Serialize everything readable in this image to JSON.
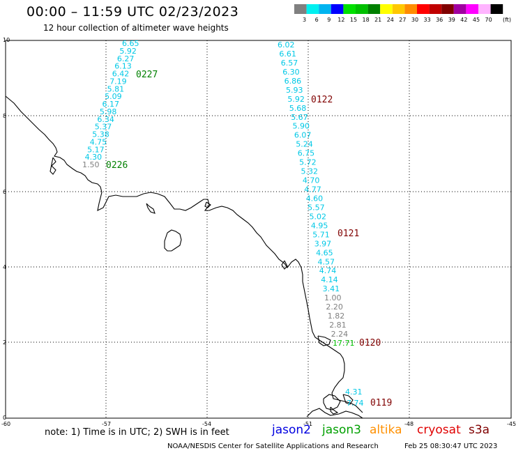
{
  "header": {
    "title": "00:00 – 11:59 UTC 02/23/2023",
    "subtitle": "12 hour collection of altimeter wave heights"
  },
  "legend": {
    "unit": "(ft)",
    "bins": [
      {
        "label": "3",
        "color": "#808080"
      },
      {
        "label": "6",
        "color": "#00f0f0"
      },
      {
        "label": "9",
        "color": "#00b4f0"
      },
      {
        "label": "12",
        "color": "#0000ff"
      },
      {
        "label": "15",
        "color": "#00e000"
      },
      {
        "label": "18",
        "color": "#00c000"
      },
      {
        "label": "21",
        "color": "#008000"
      },
      {
        "label": "24",
        "color": "#ffff00"
      },
      {
        "label": "27",
        "color": "#ffc800"
      },
      {
        "label": "30",
        "color": "#ff8c00"
      },
      {
        "label": "33",
        "color": "#ff0000"
      },
      {
        "label": "36",
        "color": "#c00000"
      },
      {
        "label": "39",
        "color": "#800000"
      },
      {
        "label": "42",
        "color": "#a000a0"
      },
      {
        "label": "45",
        "color": "#ff00ff"
      },
      {
        "label": "70",
        "color": "#ffb4ff"
      },
      {
        "label": "",
        "color": "#000000"
      }
    ]
  },
  "axes": {
    "lon_ticks": [
      "-60",
      "-57",
      "-54",
      "-51",
      "-48",
      "-45"
    ],
    "lat_ticks": [
      "10",
      "8",
      "6",
      "4",
      "2",
      "0"
    ]
  },
  "tracks": [
    {
      "name": "track-a",
      "labels": [
        {
          "text": "6.65",
          "color": "#00c8e6"
        },
        {
          "text": "5.92",
          "color": "#00c8e6"
        },
        {
          "text": "6.27",
          "color": "#00c8e6"
        },
        {
          "text": "6.13",
          "color": "#00c8e6"
        },
        {
          "text": "6.42",
          "color": "#00c8e6"
        },
        {
          "text": "7.19",
          "color": "#00c8e6"
        },
        {
          "text": "5.81",
          "color": "#00c8e6"
        },
        {
          "text": "5.09",
          "color": "#00c8e6"
        },
        {
          "text": "6.17",
          "color": "#00c8e6"
        },
        {
          "text": "5.98",
          "color": "#00c8e6"
        },
        {
          "text": "6.34",
          "color": "#00c8e6"
        },
        {
          "text": "5.37",
          "color": "#00c8e6"
        },
        {
          "text": "5.38",
          "color": "#00c8e6"
        },
        {
          "text": "4.75",
          "color": "#00c8e6"
        },
        {
          "text": "5.17",
          "color": "#00c8e6"
        },
        {
          "text": "4.30",
          "color": "#00c8e6"
        },
        {
          "text": "1.50",
          "color": "#808080"
        }
      ]
    },
    {
      "name": "track-b",
      "labels": [
        {
          "text": "6.02",
          "color": "#00c8e6"
        },
        {
          "text": "6.61",
          "color": "#00c8e6"
        },
        {
          "text": "6.57",
          "color": "#00c8e6"
        },
        {
          "text": "6.30",
          "color": "#00c8e6"
        },
        {
          "text": "6.86",
          "color": "#00c8e6"
        },
        {
          "text": "5.93",
          "color": "#00c8e6"
        },
        {
          "text": "5.92",
          "color": "#00c8e6"
        },
        {
          "text": "5.68",
          "color": "#00c8e6"
        },
        {
          "text": "5.67",
          "color": "#00c8e6"
        },
        {
          "text": "5.90",
          "color": "#00c8e6"
        },
        {
          "text": "6.07",
          "color": "#00c8e6"
        },
        {
          "text": "5.24",
          "color": "#00c8e6"
        },
        {
          "text": "6.75",
          "color": "#00c8e6"
        },
        {
          "text": "5.72",
          "color": "#00c8e6"
        },
        {
          "text": "5.32",
          "color": "#00c8e6"
        },
        {
          "text": "4.70",
          "color": "#00c8e6"
        },
        {
          "text": "4.77",
          "color": "#00c8e6"
        },
        {
          "text": "4.60",
          "color": "#00c8e6"
        },
        {
          "text": "5.57",
          "color": "#00c8e6"
        },
        {
          "text": "5.02",
          "color": "#00c8e6"
        },
        {
          "text": "4.95",
          "color": "#00c8e6"
        },
        {
          "text": "5.71",
          "color": "#00c8e6"
        },
        {
          "text": "3.97",
          "color": "#00c8e6"
        },
        {
          "text": "4.65",
          "color": "#00c8e6"
        },
        {
          "text": "4.57",
          "color": "#00c8e6"
        },
        {
          "text": "4.74",
          "color": "#00c8e6"
        },
        {
          "text": "4.14",
          "color": "#00c8e6"
        },
        {
          "text": "3.41",
          "color": "#00c8e6"
        },
        {
          "text": "1.00",
          "color": "#808080"
        },
        {
          "text": "2.20",
          "color": "#808080"
        },
        {
          "text": "1.82",
          "color": "#808080"
        },
        {
          "text": "2.81",
          "color": "#808080"
        },
        {
          "text": "2.24",
          "color": "#808080"
        },
        {
          "text": "17.71",
          "color": "#00c000"
        }
      ]
    },
    {
      "name": "track-c",
      "labels": [
        {
          "text": "4.31",
          "color": "#00c8e6"
        },
        {
          "text": "7.74",
          "color": "#00c8e6"
        }
      ]
    }
  ],
  "passes": [
    {
      "text": "0227",
      "color": "#008000"
    },
    {
      "text": "0226",
      "color": "#008000"
    },
    {
      "text": "0122",
      "color": "#800000"
    },
    {
      "text": "0121",
      "color": "#800000"
    },
    {
      "text": "0120",
      "color": "#800000"
    },
    {
      "text": "0119",
      "color": "#800000"
    }
  ],
  "footer": {
    "note": "note: 1) Time is in UTC; 2) SWH is in feet",
    "missions": [
      {
        "text": "jason2",
        "color": "#0000e0"
      },
      {
        "text": "jason3",
        "color": "#00a000"
      },
      {
        "text": "altika",
        "color": "#ff9000"
      },
      {
        "text": "cryosat",
        "color": "#e00000"
      },
      {
        "text": "s3a",
        "color": "#800000"
      }
    ],
    "credit": "NOAA/NESDIS Center for Satellite Applications and Research",
    "timestamp": "Feb 25 08:30:47 UTC 2023"
  }
}
